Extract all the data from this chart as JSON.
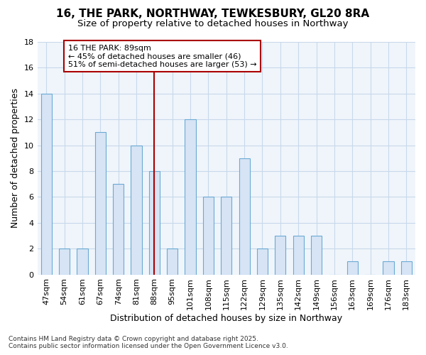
{
  "title": "16, THE PARK, NORTHWAY, TEWKESBURY, GL20 8RA",
  "subtitle": "Size of property relative to detached houses in Northway",
  "xlabel": "Distribution of detached houses by size in Northway",
  "ylabel": "Number of detached properties",
  "categories": [
    "47sqm",
    "54sqm",
    "61sqm",
    "67sqm",
    "74sqm",
    "81sqm",
    "88sqm",
    "95sqm",
    "101sqm",
    "108sqm",
    "115sqm",
    "122sqm",
    "129sqm",
    "135sqm",
    "142sqm",
    "149sqm",
    "156sqm",
    "163sqm",
    "169sqm",
    "176sqm",
    "183sqm"
  ],
  "values": [
    14,
    2,
    2,
    11,
    7,
    10,
    8,
    2,
    12,
    6,
    6,
    9,
    2,
    3,
    3,
    3,
    0,
    1,
    0,
    1,
    1
  ],
  "bar_color": "#d6e4f5",
  "bar_edge_color": "#6aaad4",
  "grid_color": "#c8d8ea",
  "background_color": "#ffffff",
  "plot_bg_color": "#f0f5fb",
  "vline_x_index": 6,
  "vline_color": "#aa0000",
  "annotation_text": "16 THE PARK: 89sqm\n← 45% of detached houses are smaller (46)\n51% of semi-detached houses are larger (53) →",
  "annotation_box_color": "#ffffff",
  "annotation_box_edge_color": "#aa0000",
  "ylim": [
    0,
    18
  ],
  "yticks": [
    0,
    2,
    4,
    6,
    8,
    10,
    12,
    14,
    16,
    18
  ],
  "footnote": "Contains HM Land Registry data © Crown copyright and database right 2025.\nContains public sector information licensed under the Open Government Licence v3.0.",
  "title_fontsize": 11,
  "subtitle_fontsize": 9.5,
  "tick_fontsize": 8,
  "ylabel_fontsize": 9,
  "xlabel_fontsize": 9,
  "bar_width": 0.6
}
